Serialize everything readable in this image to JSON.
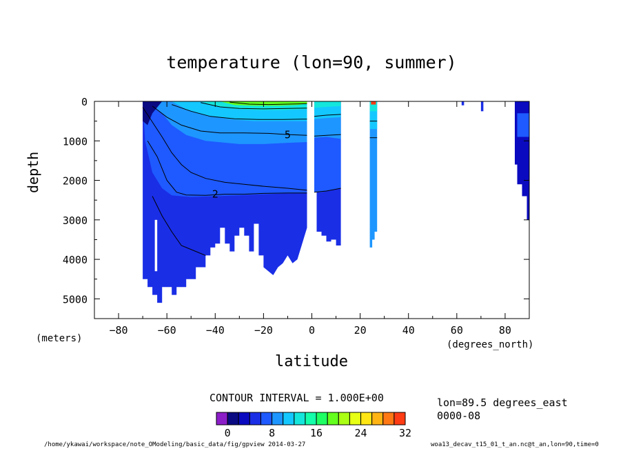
{
  "chart_data": {
    "type": "heatmap",
    "title": "temperature (lon=90, summer)",
    "xlabel": "latitude",
    "ylabel": "depth",
    "x_units": "(degrees_north)",
    "y_units": "(meters)",
    "xlim": [
      -90,
      90
    ],
    "ylim": [
      5500,
      0
    ],
    "x_ticks": [
      -80,
      -60,
      -40,
      -20,
      0,
      20,
      40,
      60,
      80
    ],
    "y_ticks": [
      0,
      1000,
      2000,
      3000,
      4000,
      5000
    ],
    "contour_interval_text": "CONTOUR INTERVAL = 1.000E+00",
    "contour_labels": [
      {
        "text": "2",
        "lat": -40,
        "depth": 2350
      },
      {
        "text": "5",
        "lat": -10,
        "depth": 850
      }
    ],
    "colorbar": {
      "min": -2,
      "max": 32,
      "step": 2,
      "tick_labels": [
        "0",
        "8",
        "16",
        "24",
        "32"
      ],
      "tick_values": [
        0,
        8,
        16,
        24,
        32
      ]
    },
    "info": [
      "lon=89.5 degrees_east",
      "0000-08"
    ],
    "footer_left": "/home/ykawai/workspace/note_OModeling/basic_data/fig/gpview  2014-03-27",
    "footer_right": "woa13_decav_t15_01_t_an.nc@t_an,lon=90,time=0"
  },
  "colors": {
    "palette": [
      "#8c1ec8",
      "#0a0a82",
      "#0a0ac0",
      "#1a2ee6",
      "#1e5aff",
      "#1e96ff",
      "#14c8ff",
      "#14e6dc",
      "#14ffaa",
      "#1eff64",
      "#64ff1e",
      "#aaff14",
      "#e6ff14",
      "#ffe614",
      "#ffb414",
      "#ff7814",
      "#ff3c14",
      "#e61e1e",
      "#ff6496"
    ],
    "fill_deep": "#1a2ee6",
    "fill_mid": "#1e5aff",
    "fill_upper": "#1e96ff",
    "fill_thermo": "#14c8ff",
    "fill_warm": "#14e6dc",
    "fill_surface": "#64ff1e",
    "fill_abyss": "#0a0ac0",
    "fill_shelf": "#0a0a82"
  }
}
